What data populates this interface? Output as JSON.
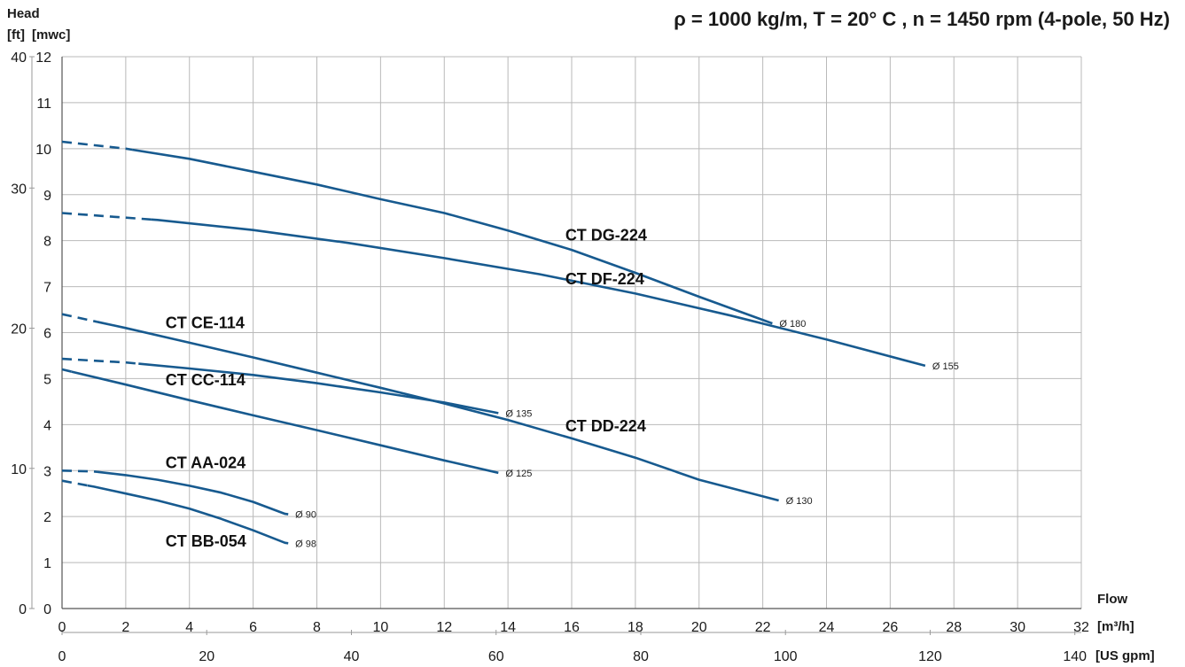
{
  "chart_data": {
    "type": "line",
    "title": "ρ = 1000 kg/m, T = 20° C , n = 1450 rpm (4-pole, 50 Hz)",
    "y_axis_title": "Head",
    "y_left_unit": "[ft]",
    "y_right_unit": "[mwc]",
    "x_axis_title": "Flow",
    "x_primary_unit": "[m³/h]",
    "x_secondary_unit": "[US gpm]",
    "xlim": [
      0,
      32
    ],
    "ylim": [
      0,
      12
    ],
    "x_ticks": [
      "0",
      "2",
      "4",
      "6",
      "8",
      "10",
      "12",
      "14",
      "16",
      "18",
      "20",
      "22",
      "24",
      "26",
      "28",
      "30",
      "32"
    ],
    "y_ticks": [
      "0",
      "1",
      "2",
      "3",
      "4",
      "5",
      "6",
      "7",
      "8",
      "9",
      "10",
      "11",
      "12"
    ],
    "ft_ticks": [
      {
        "label": "0",
        "y": 0
      },
      {
        "label": "10",
        "y": 3.048
      },
      {
        "label": "20",
        "y": 6.096
      },
      {
        "label": "30",
        "y": 9.144
      },
      {
        "label": "40",
        "y": 12.192
      }
    ],
    "gpm_ticks": [
      {
        "label": "0",
        "x": 0
      },
      {
        "label": "20",
        "x": 4.542
      },
      {
        "label": "40",
        "x": 9.085
      },
      {
        "label": "60",
        "x": 13.627
      },
      {
        "label": "80",
        "x": 18.17
      },
      {
        "label": "100",
        "x": 22.712
      },
      {
        "label": "120",
        "x": 27.255
      },
      {
        "label": "140",
        "x": 31.797
      }
    ],
    "grid": true,
    "line_color": "#175a8f",
    "series": [
      {
        "name": "CT DG-224",
        "end_label": "Ø 180",
        "dashed_until": 2.2,
        "points": [
          [
            0,
            10.15
          ],
          [
            2,
            10.0
          ],
          [
            4,
            9.78
          ],
          [
            6,
            9.5
          ],
          [
            8,
            9.22
          ],
          [
            10,
            8.9
          ],
          [
            12,
            8.6
          ],
          [
            14,
            8.22
          ],
          [
            16,
            7.8
          ],
          [
            18,
            7.3
          ],
          [
            20,
            6.78
          ],
          [
            22.3,
            6.2
          ]
        ],
        "label_pos": [
          15.8,
          8.0
        ]
      },
      {
        "name": "CT DF-224",
        "end_label": "Ø 155",
        "dashed_until": 2.8,
        "points": [
          [
            0,
            8.6
          ],
          [
            3,
            8.45
          ],
          [
            6,
            8.23
          ],
          [
            9,
            7.95
          ],
          [
            12,
            7.62
          ],
          [
            15,
            7.27
          ],
          [
            18,
            6.85
          ],
          [
            21,
            6.37
          ],
          [
            24,
            5.85
          ],
          [
            27.1,
            5.28
          ]
        ],
        "label_pos": [
          15.8,
          7.05
        ]
      },
      {
        "name": "CT CE-114",
        "end_label": "Ø 130",
        "dashed_until": 1.1,
        "points": [
          [
            0,
            6.4
          ],
          [
            2,
            6.1
          ],
          [
            4,
            5.78
          ],
          [
            6,
            5.46
          ],
          [
            8,
            5.13
          ],
          [
            10,
            4.8
          ],
          [
            12,
            4.46
          ],
          [
            14,
            4.1
          ],
          [
            16,
            3.7
          ],
          [
            18,
            3.28
          ],
          [
            20,
            2.8
          ],
          [
            22.5,
            2.35
          ]
        ],
        "label_pos": [
          3.25,
          6.1
        ]
      },
      {
        "name": "CT DD-224",
        "end_label": "Ø 135",
        "dashed_until": 2.4,
        "points": [
          [
            0,
            5.43
          ],
          [
            2,
            5.35
          ],
          [
            4,
            5.22
          ],
          [
            6,
            5.08
          ],
          [
            8,
            4.9
          ],
          [
            10,
            4.7
          ],
          [
            12,
            4.48
          ],
          [
            13.7,
            4.25
          ]
        ],
        "label_pos": [
          15.8,
          3.85
        ]
      },
      {
        "name": "CT CC-114",
        "end_label": "Ø 125",
        "dashed_until": 0.3,
        "points": [
          [
            0,
            5.2
          ],
          [
            2,
            4.87
          ],
          [
            4,
            4.53
          ],
          [
            6,
            4.2
          ],
          [
            8,
            3.88
          ],
          [
            10,
            3.55
          ],
          [
            12,
            3.22
          ],
          [
            13.7,
            2.95
          ]
        ],
        "label_pos": [
          3.25,
          4.85
        ]
      },
      {
        "name": "CT AA-024",
        "end_label": "Ø 90",
        "dashed_until": 1.1,
        "points": [
          [
            0,
            3.0
          ],
          [
            1,
            2.98
          ],
          [
            2,
            2.9
          ],
          [
            3,
            2.8
          ],
          [
            4,
            2.67
          ],
          [
            5,
            2.52
          ],
          [
            6,
            2.32
          ],
          [
            7,
            2.06
          ],
          [
            7.1,
            2.05
          ]
        ],
        "label_pos": [
          3.25,
          3.05
        ]
      },
      {
        "name": "CT BB-054",
        "end_label": "Ø 98",
        "dashed_until": 0.8,
        "points": [
          [
            0,
            2.78
          ],
          [
            1,
            2.65
          ],
          [
            2,
            2.5
          ],
          [
            3,
            2.35
          ],
          [
            4,
            2.17
          ],
          [
            5,
            1.95
          ],
          [
            6,
            1.7
          ],
          [
            7,
            1.43
          ],
          [
            7.1,
            1.42
          ]
        ],
        "label_pos": [
          3.25,
          1.35
        ]
      }
    ]
  }
}
